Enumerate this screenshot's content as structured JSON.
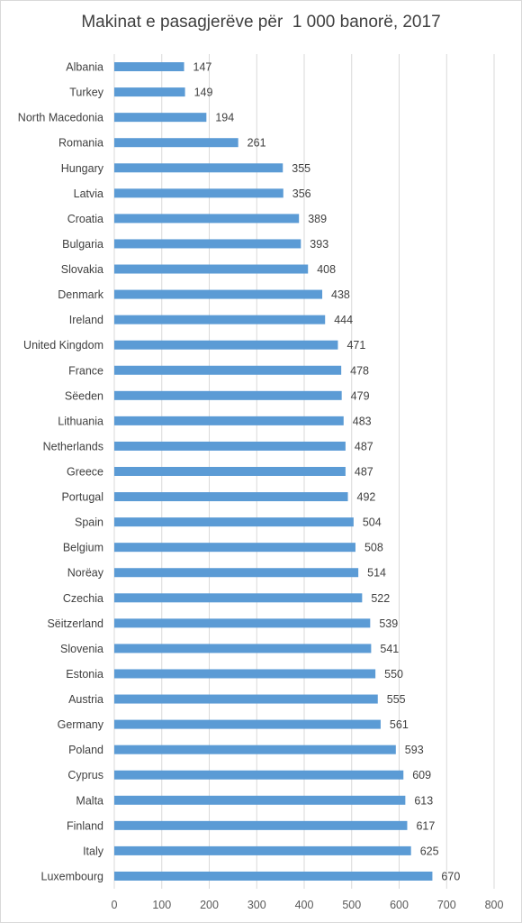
{
  "chart_data": {
    "type": "bar",
    "orientation": "horizontal",
    "title": "Makinat e pasagjerëve për  1 000 banorë, 2017",
    "categories": [
      "Albania",
      "Turkey",
      "North Macedonia",
      "Romania",
      "Hungary",
      "Latvia",
      "Croatia",
      "Bulgaria",
      "Slovakia",
      "Denmark",
      "Ireland",
      "United Kingdom",
      "France",
      "Sëeden",
      "Lithuania",
      "Netherlands",
      "Greece",
      "Portugal",
      "Spain",
      "Belgium",
      "Norëay",
      "Czechia",
      "Sëitzerland",
      "Slovenia",
      "Estonia",
      "Austria",
      "Germany",
      "Poland",
      "Cyprus",
      "Malta",
      "Finland",
      "Italy",
      "Luxembourg"
    ],
    "values": [
      147,
      149,
      194,
      261,
      355,
      356,
      389,
      393,
      408,
      438,
      444,
      471,
      478,
      479,
      483,
      487,
      487,
      492,
      504,
      508,
      514,
      522,
      539,
      541,
      550,
      555,
      561,
      593,
      609,
      613,
      617,
      625,
      670
    ],
    "xlim": [
      0,
      800
    ],
    "xticks": [
      0,
      100,
      200,
      300,
      400,
      500,
      600,
      700,
      800
    ],
    "grid": true,
    "bar_color": "#5b9bd5",
    "grid_color": "#d9d9d9",
    "text_color": "#404040",
    "legend": false
  }
}
